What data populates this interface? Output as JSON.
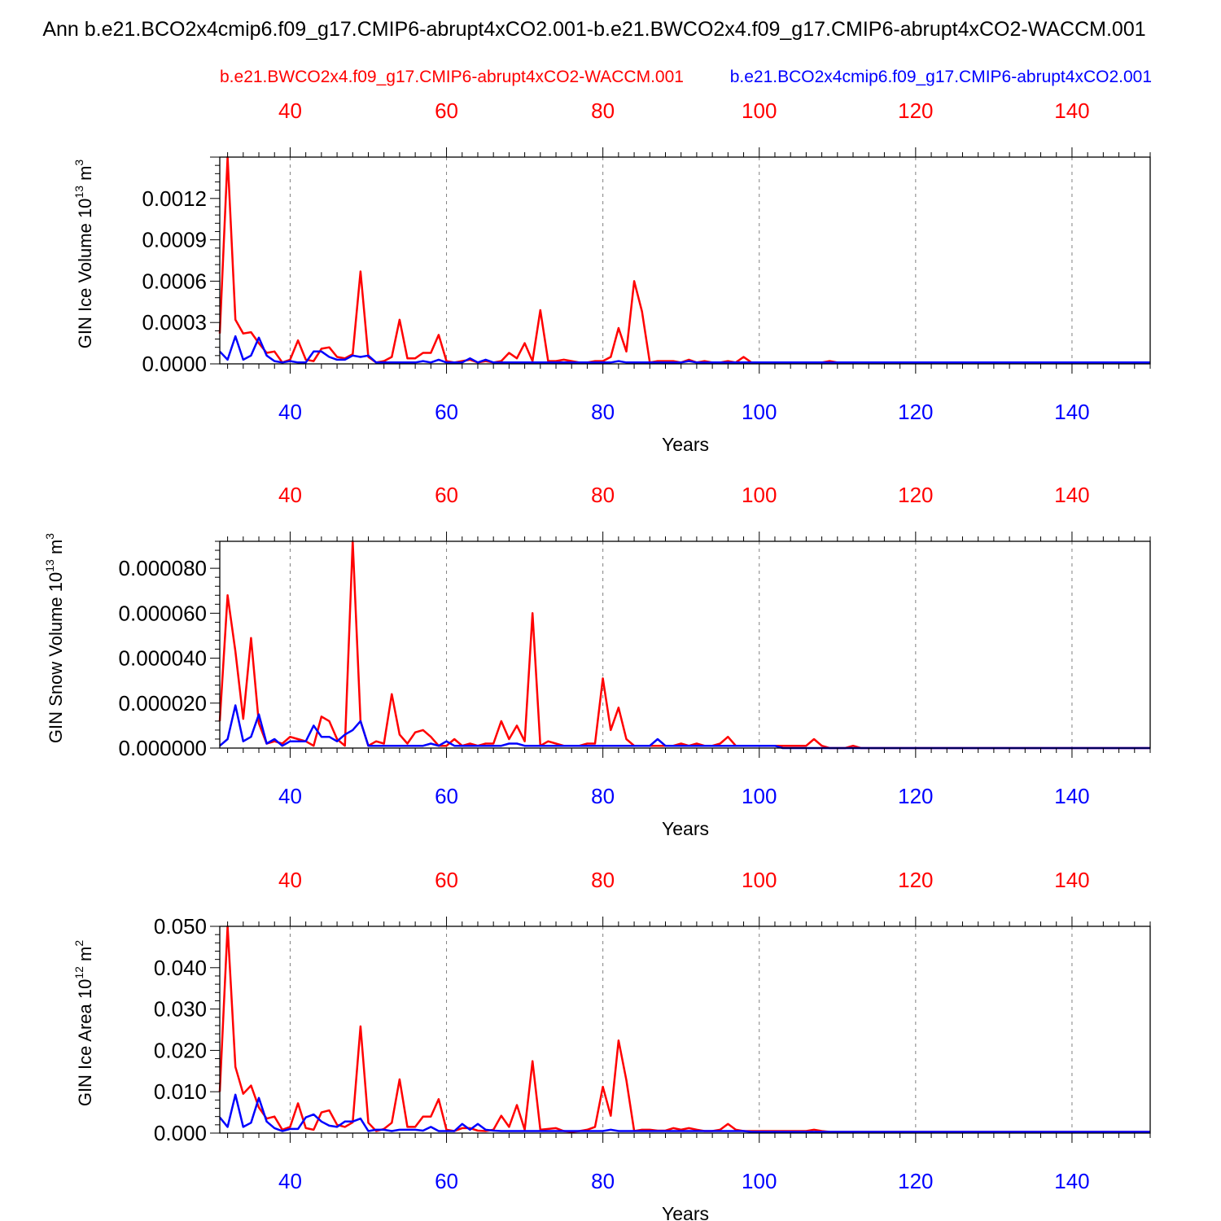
{
  "page": {
    "main_title": "Ann b.e21.BCO2x4cmip6.f09_g17.CMIP6-abrupt4xCO2.001-b.e21.BWCO2x4.f09_g17.CMIP6-abrupt4xCO2-WACCM.001",
    "legend_red": "b.e21.BWCO2x4.f09_g17.CMIP6-abrupt4xCO2-WACCM.001",
    "legend_blue": "b.e21.BCO2x4cmip6.f09_g17.CMIP6-abrupt4xCO2.001",
    "colors": {
      "red": "#ff0000",
      "blue": "#0000ff",
      "axis": "#000000",
      "grid": "#808080"
    }
  },
  "chart_data": [
    {
      "type": "line",
      "id": "ice-volume",
      "ylabel": "GIN Ice Volume 10",
      "ylabel_exp": "13",
      "ylabel_unit": " m",
      "ylabel_unit_exp": "3",
      "xlabel": "Years",
      "xlim": [
        31,
        150
      ],
      "ylim": [
        0,
        0.0015
      ],
      "yticks": [
        0,
        0.0003,
        0.0006,
        0.0009,
        0.0012
      ],
      "ytick_labels": [
        "0.0000",
        "0.0003",
        "0.0006",
        "0.0009",
        "0.0012"
      ],
      "xticks": [
        40,
        60,
        80,
        100,
        120,
        140
      ],
      "xtick_labels": [
        "40",
        "60",
        "80",
        "100",
        "120",
        "140"
      ],
      "series": [
        {
          "name": "b.e21.BWCO2x4.f09_g17.CMIP6-abrupt4xCO2-WACCM.001",
          "color": "#ff0000",
          "x0": 31,
          "values": [
            0.00022,
            0.0015,
            0.00032,
            0.00022,
            0.00023,
            0.00015,
            8e-05,
            9e-05,
            1e-05,
            3e-05,
            0.00017,
            3e-05,
            2e-05,
            0.00011,
            0.00012,
            5e-05,
            4e-05,
            7e-05,
            0.00067,
            5e-05,
            1e-05,
            2e-05,
            5e-05,
            0.00032,
            4e-05,
            4e-05,
            8e-05,
            8e-05,
            0.00021,
            2e-05,
            1e-05,
            2e-05,
            3e-05,
            1e-05,
            2e-05,
            1e-05,
            2e-05,
            8e-05,
            4e-05,
            0.00015,
            2e-05,
            0.00039,
            2e-05,
            2e-05,
            3e-05,
            2e-05,
            1e-05,
            1e-05,
            2e-05,
            2e-05,
            5e-05,
            0.00026,
            9e-05,
            0.0006,
            0.00038,
            1e-05,
            2e-05,
            2e-05,
            2e-05,
            1e-05,
            3e-05,
            1e-05,
            2e-05,
            1e-05,
            1e-05,
            2e-05,
            1e-05,
            5e-05,
            1e-05,
            1e-05,
            1e-05,
            1e-05,
            1e-05,
            1e-05,
            1e-05,
            1e-05,
            1e-05,
            1e-05,
            2e-05,
            1e-05,
            1e-05,
            1e-05,
            1e-05,
            1e-05,
            1e-05,
            1e-05,
            1e-05,
            1e-05,
            1e-05,
            1e-05,
            1e-05,
            1e-05,
            1e-05,
            1e-05,
            1e-05,
            1e-05,
            1e-05,
            1e-05,
            1e-05,
            1e-05,
            1e-05,
            1e-05,
            1e-05,
            1e-05,
            1e-05,
            1e-05,
            1e-05,
            1e-05,
            1e-05,
            1e-05,
            1e-05,
            1e-05,
            1e-05,
            1e-05,
            1e-05,
            1e-05,
            1e-05,
            1e-05,
            1e-05,
            1e-05
          ]
        },
        {
          "name": "b.e21.BCO2x4cmip6.f09_g17.CMIP6-abrupt4xCO2.001",
          "color": "#0000ff",
          "x0": 31,
          "values": [
            9e-05,
            3e-05,
            0.0002,
            3e-05,
            6e-05,
            0.00019,
            6e-05,
            2e-05,
            1e-05,
            2e-05,
            1e-05,
            1e-05,
            9e-05,
            9e-05,
            5e-05,
            3e-05,
            3e-05,
            6e-05,
            5e-05,
            6e-05,
            1e-05,
            1e-05,
            1e-05,
            1e-05,
            1e-05,
            1e-05,
            2e-05,
            1e-05,
            3e-05,
            1e-05,
            1e-05,
            1e-05,
            4e-05,
            1e-05,
            3e-05,
            1e-05,
            1e-05,
            1e-05,
            1e-05,
            1e-05,
            1e-05,
            1e-05,
            1e-05,
            1e-05,
            1e-05,
            1e-05,
            1e-05,
            1e-05,
            1e-05,
            1e-05,
            1e-05,
            2e-05,
            1e-05,
            1e-05,
            1e-05,
            1e-05,
            1e-05,
            1e-05,
            1e-05,
            1e-05,
            2e-05,
            1e-05,
            1e-05,
            1e-05,
            1e-05,
            1e-05,
            1e-05,
            1e-05,
            1e-05,
            1e-05,
            1e-05,
            1e-05,
            1e-05,
            1e-05,
            1e-05,
            1e-05,
            1e-05,
            1e-05,
            1e-05,
            1e-05,
            1e-05,
            1e-05,
            1e-05,
            1e-05,
            1e-05,
            1e-05,
            1e-05,
            1e-05,
            1e-05,
            1e-05,
            1e-05,
            1e-05,
            1e-05,
            1e-05,
            1e-05,
            1e-05,
            1e-05,
            1e-05,
            1e-05,
            1e-05,
            1e-05,
            1e-05,
            1e-05,
            1e-05,
            1e-05,
            1e-05,
            1e-05,
            1e-05,
            1e-05,
            1e-05,
            1e-05,
            1e-05,
            1e-05,
            1e-05,
            1e-05,
            1e-05,
            1e-05,
            1e-05,
            1e-05,
            1e-05
          ]
        }
      ]
    },
    {
      "type": "line",
      "id": "snow-volume",
      "ylabel": "GIN Snow Volume 10",
      "ylabel_exp": "13",
      "ylabel_unit": " m",
      "ylabel_unit_exp": "3",
      "xlabel": "Years",
      "xlim": [
        31,
        150
      ],
      "ylim": [
        0,
        9.2e-05
      ],
      "yticks": [
        0,
        2e-05,
        4e-05,
        6e-05,
        8e-05
      ],
      "ytick_labels": [
        "0.000000",
        "0.000020",
        "0.000040",
        "0.000060",
        "0.000080"
      ],
      "xticks": [
        40,
        60,
        80,
        100,
        120,
        140
      ],
      "xtick_labels": [
        "40",
        "60",
        "80",
        "100",
        "120",
        "140"
      ],
      "series": [
        {
          "name": "b.e21.BWCO2x4.f09_g17.CMIP6-abrupt4xCO2-WACCM.001",
          "color": "#ff0000",
          "x0": 31,
          "values": [
            1.2e-05,
            6.8e-05,
            4.3e-05,
            1.3e-05,
            4.9e-05,
            1.1e-05,
            2e-06,
            3e-06,
            2e-06,
            5e-06,
            4e-06,
            3e-06,
            1e-06,
            1.4e-05,
            1.2e-05,
            4e-06,
            1e-06,
            9.2e-05,
            1.2e-05,
            1e-06,
            3e-06,
            2e-06,
            2.4e-05,
            6e-06,
            2e-06,
            7e-06,
            8e-06,
            5e-06,
            1e-06,
            1e-06,
            4e-06,
            1e-06,
            2e-06,
            1e-06,
            2e-06,
            2e-06,
            1.2e-05,
            4e-06,
            1e-05,
            3e-06,
            6e-05,
            1e-06,
            3e-06,
            2e-06,
            1e-06,
            1e-06,
            1e-06,
            2e-06,
            2e-06,
            3.1e-05,
            8e-06,
            1.8e-05,
            4e-06,
            1e-06,
            1e-06,
            1e-06,
            1e-06,
            1e-06,
            1e-06,
            2e-06,
            1e-06,
            2e-06,
            1e-06,
            1e-06,
            2e-06,
            5e-06,
            1e-06,
            1e-06,
            1e-06,
            1e-06,
            1e-06,
            1e-06,
            1e-06,
            1e-06,
            1e-06,
            1e-06,
            4e-06,
            1e-06,
            0,
            0,
            0,
            1e-06,
            0,
            0,
            0,
            0,
            0,
            0,
            0,
            0,
            0,
            0,
            0,
            0,
            0,
            0,
            0,
            0,
            0,
            0,
            0,
            0,
            0,
            0,
            0,
            0,
            0,
            0,
            0,
            0,
            0,
            0,
            0,
            0,
            0,
            0,
            0,
            0,
            0,
            0
          ]
        },
        {
          "name": "b.e21.BCO2x4cmip6.f09_g17.CMIP6-abrupt4xCO2.001",
          "color": "#0000ff",
          "x0": 31,
          "values": [
            1e-06,
            4e-06,
            1.9e-05,
            3e-06,
            5e-06,
            1.5e-05,
            2e-06,
            4e-06,
            1e-06,
            3e-06,
            3e-06,
            3e-06,
            1e-05,
            5e-06,
            5e-06,
            3e-06,
            6e-06,
            8e-06,
            1.2e-05,
            1e-06,
            1e-06,
            1e-06,
            1e-06,
            1e-06,
            1e-06,
            1e-06,
            1e-06,
            2e-06,
            1e-06,
            3e-06,
            1e-06,
            1e-06,
            1e-06,
            1e-06,
            1e-06,
            1e-06,
            1e-06,
            2e-06,
            2e-06,
            1e-06,
            1e-06,
            1e-06,
            1e-06,
            1e-06,
            1e-06,
            1e-06,
            1e-06,
            1e-06,
            1e-06,
            1e-06,
            1e-06,
            1e-06,
            1e-06,
            1e-06,
            1e-06,
            1e-06,
            4e-06,
            1e-06,
            1e-06,
            1e-06,
            1e-06,
            1e-06,
            1e-06,
            1e-06,
            1e-06,
            1e-06,
            1e-06,
            1e-06,
            1e-06,
            1e-06,
            1e-06,
            1e-06,
            0,
            0,
            0,
            0,
            0,
            0,
            0,
            0,
            0,
            0,
            0,
            0,
            0,
            0,
            0,
            0,
            0,
            0,
            0,
            0,
            0,
            0,
            0,
            0,
            0,
            0,
            0,
            0,
            0,
            0,
            0,
            0,
            0,
            0,
            0,
            0,
            0,
            0,
            0,
            0,
            0,
            0,
            0,
            0,
            0,
            0,
            0,
            0
          ]
        }
      ]
    },
    {
      "type": "line",
      "id": "ice-area",
      "ylabel": "GIN Ice Area 10",
      "ylabel_exp": "12",
      "ylabel_unit": " m",
      "ylabel_unit_exp": "2",
      "xlabel": "Years",
      "xlim": [
        31,
        150
      ],
      "ylim": [
        0,
        0.05
      ],
      "yticks": [
        0,
        0.01,
        0.02,
        0.03,
        0.04,
        0.05
      ],
      "ytick_labels": [
        "0.000",
        "0.010",
        "0.020",
        "0.030",
        "0.040",
        "0.050"
      ],
      "xticks": [
        40,
        60,
        80,
        100,
        120,
        140
      ],
      "xtick_labels": [
        "40",
        "60",
        "80",
        "100",
        "120",
        "140"
      ],
      "series": [
        {
          "name": "b.e21.BWCO2x4.f09_g17.CMIP6-abrupt4xCO2-WACCM.001",
          "color": "#ff0000",
          "x0": 31,
          "values": [
            0.01,
            0.05,
            0.016,
            0.0095,
            0.0115,
            0.0062,
            0.0035,
            0.004,
            0.0008,
            0.0015,
            0.0072,
            0.0012,
            0.0008,
            0.005,
            0.0055,
            0.002,
            0.0015,
            0.0026,
            0.0258,
            0.0025,
            0.0005,
            0.001,
            0.0025,
            0.013,
            0.0015,
            0.0015,
            0.004,
            0.004,
            0.0082,
            0.0008,
            0.0005,
            0.0012,
            0.0012,
            0.0006,
            0.0005,
            0.0008,
            0.0042,
            0.0015,
            0.0068,
            0.0008,
            0.0174,
            0.0008,
            0.001,
            0.0012,
            0.0005,
            0.0003,
            0.0005,
            0.0008,
            0.0015,
            0.0112,
            0.0042,
            0.0224,
            0.0128,
            0.0005,
            0.0008,
            0.0008,
            0.0006,
            0.0006,
            0.0012,
            0.0008,
            0.0012,
            0.0008,
            0.0005,
            0.0005,
            0.0008,
            0.0022,
            0.0008,
            0.0005,
            0.0005,
            0.0005,
            0.0005,
            0.0005,
            0.0005,
            0.0005,
            0.0005,
            0.0005,
            0.0008,
            0.0005,
            0.0003,
            0.0003,
            0.0003,
            0.0003,
            0.0003,
            0.0003,
            0.0003,
            0.0003,
            0.0003,
            0.0003,
            0.0003,
            0.0003,
            0.0003,
            0.0003,
            0.0003,
            0.0003,
            0.0003,
            0.0003,
            0.0003,
            0.0003,
            0.0003,
            0.0003,
            0.0003,
            0.0003,
            0.0003,
            0.0003,
            0.0003,
            0.0003,
            0.0003,
            0.0003,
            0.0003,
            0.0003,
            0.0003,
            0.0003,
            0.0003,
            0.0003,
            0.0003,
            0.0003,
            0.0003,
            0.0003,
            0.0003,
            0.0003
          ]
        },
        {
          "name": "b.e21.BCO2x4cmip6.f09_g17.CMIP6-abrupt4xCO2.001",
          "color": "#0000ff",
          "x0": 31,
          "values": [
            0.0038,
            0.0015,
            0.0093,
            0.0015,
            0.0025,
            0.0085,
            0.0028,
            0.0012,
            0.0005,
            0.001,
            0.001,
            0.0038,
            0.0045,
            0.0028,
            0.0018,
            0.0015,
            0.0028,
            0.0028,
            0.0035,
            0.0005,
            0.0008,
            0.0008,
            0.0005,
            0.0008,
            0.0008,
            0.0008,
            0.0006,
            0.0015,
            0.0005,
            0.0005,
            0.0005,
            0.0022,
            0.0008,
            0.0022,
            0.0008,
            0.0006,
            0.0005,
            0.0005,
            0.0005,
            0.0005,
            0.0005,
            0.0005,
            0.0005,
            0.0005,
            0.0005,
            0.0005,
            0.0005,
            0.0005,
            0.0005,
            0.0005,
            0.0008,
            0.0005,
            0.0005,
            0.0005,
            0.0005,
            0.0005,
            0.0005,
            0.0005,
            0.0005,
            0.0005,
            0.0005,
            0.0005,
            0.0005,
            0.0005,
            0.0005,
            0.0005,
            0.0005,
            0.0005,
            0.0003,
            0.0003,
            0.0003,
            0.0003,
            0.0003,
            0.0003,
            0.0003,
            0.0003,
            0.0003,
            0.0003,
            0.0003,
            0.0003,
            0.0003,
            0.0003,
            0.0003,
            0.0003,
            0.0003,
            0.0003,
            0.0003,
            0.0003,
            0.0003,
            0.0003,
            0.0003,
            0.0003,
            0.0003,
            0.0003,
            0.0003,
            0.0003,
            0.0003,
            0.0003,
            0.0003,
            0.0003,
            0.0003,
            0.0003,
            0.0003,
            0.0003,
            0.0003,
            0.0003,
            0.0003,
            0.0003,
            0.0003,
            0.0003,
            0.0003,
            0.0003,
            0.0003,
            0.0003,
            0.0003,
            0.0003,
            0.0003,
            0.0003,
            0.0003,
            0.0003
          ]
        }
      ]
    }
  ]
}
